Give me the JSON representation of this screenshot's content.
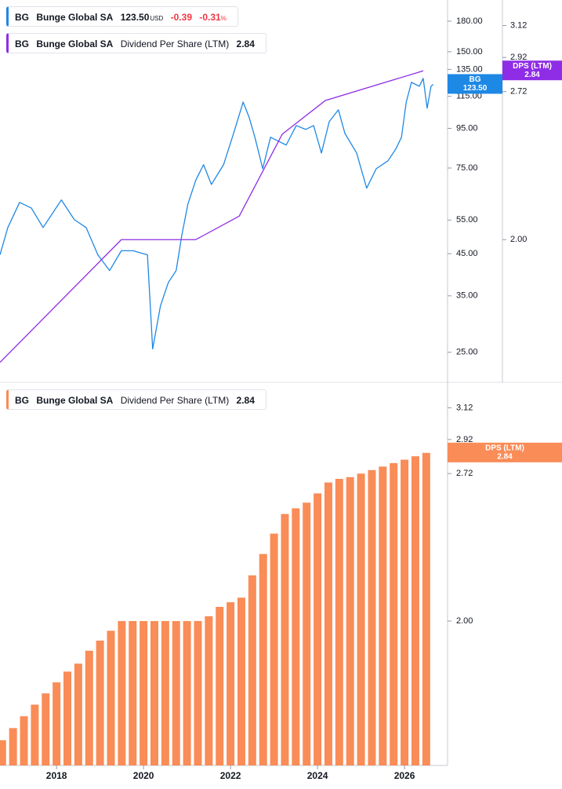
{
  "legends": [
    {
      "symbol": "BG",
      "name": "Bunge Global SA",
      "price": "123.50",
      "currency": "USD",
      "change": "-0.39",
      "change_pct": "-0.31",
      "pct_sign": "%"
    },
    {
      "symbol": "BG",
      "name": "Bunge Global SA",
      "metric": "Dividend Per Share (LTM)",
      "value": "2.84"
    },
    {
      "symbol": "BG",
      "name": "Bunge Global SA",
      "metric": "Dividend Per Share (LTM)",
      "value": "2.84"
    }
  ],
  "chart_data": [
    {
      "type": "line",
      "log_scale": true,
      "xlim": [
        2016.7,
        2026.99
      ],
      "ylim": [
        20.9,
        204.2
      ],
      "yticks": [
        {
          "value": 180,
          "label": "180.00"
        },
        {
          "value": 150,
          "label": "150.00"
        },
        {
          "value": 135,
          "label": "135.00"
        },
        {
          "value": 115,
          "label": "115.00"
        },
        {
          "value": 95,
          "label": "95.00"
        },
        {
          "value": 75,
          "label": "75.00"
        },
        {
          "value": 55,
          "label": "55.00"
        },
        {
          "value": 45,
          "label": "45.00"
        },
        {
          "value": 35,
          "label": "35.00"
        },
        {
          "value": 25,
          "label": "25.00"
        }
      ],
      "y2lim": [
        1.487,
        3.29
      ],
      "y2ticks": [
        3.12,
        2.92,
        2.72,
        {
          "value": 2,
          "label": "2.00"
        }
      ],
      "series": [
        {
          "name": "BG",
          "color": "#1e88e5",
          "axis": "y",
          "last_label": "123.50",
          "x": [
            2016.7,
            2016.88,
            2017.15,
            2017.42,
            2017.69,
            2017.87,
            2018.11,
            2018.41,
            2018.68,
            2018.95,
            2019.22,
            2019.49,
            2019.76,
            2020.09,
            2020.21,
            2020.39,
            2020.57,
            2020.75,
            2020.88,
            2021.02,
            2021.2,
            2021.38,
            2021.56,
            2021.84,
            2022.07,
            2022.29,
            2022.43,
            2022.56,
            2022.74,
            2022.92,
            2023.1,
            2023.28,
            2023.51,
            2023.73,
            2023.91,
            2024.09,
            2024.27,
            2024.48,
            2024.63,
            2024.9,
            2025.13,
            2025.35,
            2025.62,
            2025.8,
            2025.93,
            2026.04,
            2026.16,
            2026.34,
            2026.43,
            2026.52,
            2026.61,
            2026.66
          ],
          "values": [
            44.7,
            52.6,
            61.1,
            59.1,
            52.6,
            56.4,
            62.0,
            55.1,
            52.6,
            44.7,
            40.7,
            45.8,
            45.8,
            44.7,
            25.5,
            33.0,
            37.9,
            40.7,
            50.2,
            60.5,
            69.7,
            76.5,
            68.0,
            76.5,
            92.2,
            111.1,
            101.3,
            90.1,
            74.7,
            90.1,
            88.0,
            86.0,
            96.6,
            94.4,
            96.6,
            82.0,
            98.9,
            106.1,
            92.2,
            82.0,
            66.5,
            74.7,
            78.3,
            84.0,
            90.1,
            111.1,
            125.0,
            122.1,
            128.0,
            107.1,
            122.1,
            123.5
          ]
        },
        {
          "name": "DPS (LTM)",
          "color": "#8f2de6",
          "axis": "y2",
          "last_label": "2.84",
          "x": [
            2016.7,
            2019.49,
            2021.2,
            2022.2,
            2023.19,
            2024.18,
            2026.43
          ],
          "values": [
            1.55,
            2.0,
            2.0,
            2.1,
            2.49,
            2.67,
            2.84
          ]
        }
      ]
    },
    {
      "type": "bar",
      "log_scale": true,
      "xlim": [
        2016.7,
        2026.99
      ],
      "xticks": [
        2018,
        2020,
        2022,
        2024,
        2026
      ],
      "ylim": [
        1.48,
        3.29
      ],
      "yticks": [
        3.12,
        2.92,
        2.72,
        {
          "value": 2,
          "label": "2.00"
        }
      ],
      "series": [
        {
          "name": "DPS (LTM)",
          "color": "#f98c57",
          "last_label": "2.84",
          "x": [
            2016.75,
            2017.0,
            2017.25,
            2017.5,
            2017.75,
            2018.0,
            2018.25,
            2018.5,
            2018.75,
            2019.0,
            2019.25,
            2019.5,
            2019.75,
            2020.0,
            2020.25,
            2020.5,
            2020.75,
            2021.0,
            2021.25,
            2021.5,
            2021.75,
            2022.0,
            2022.25,
            2022.5,
            2022.75,
            2023.0,
            2023.25,
            2023.5,
            2023.75,
            2024.0,
            2024.25,
            2024.5,
            2024.75,
            2025.0,
            2025.25,
            2025.5,
            2025.75,
            2026.0,
            2026.25,
            2026.5
          ],
          "values": [
            1.56,
            1.6,
            1.64,
            1.68,
            1.72,
            1.76,
            1.8,
            1.83,
            1.88,
            1.92,
            1.96,
            2.0,
            2.0,
            2.0,
            2.0,
            2.0,
            2.0,
            2.0,
            2.0,
            2.02,
            2.06,
            2.08,
            2.1,
            2.2,
            2.3,
            2.4,
            2.5,
            2.53,
            2.56,
            2.61,
            2.67,
            2.69,
            2.7,
            2.72,
            2.74,
            2.76,
            2.78,
            2.8,
            2.82,
            2.84
          ]
        }
      ]
    }
  ]
}
